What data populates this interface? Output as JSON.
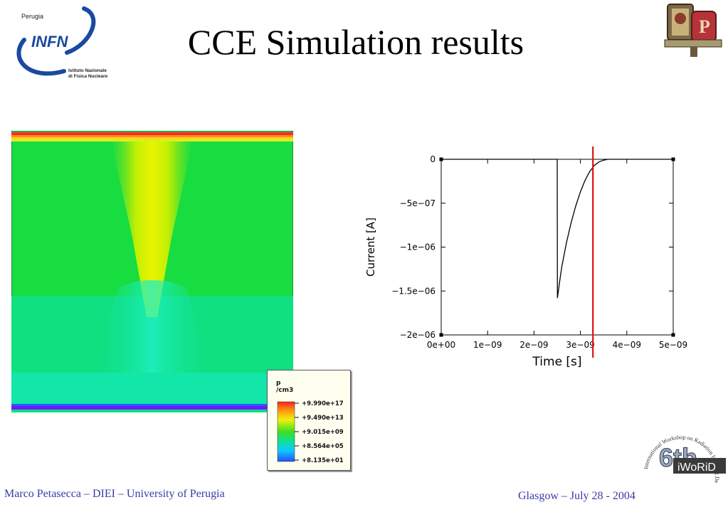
{
  "slide": {
    "title": "CCE Simulation results",
    "footer_left": "Marco Petasecca – DIEI – University of Perugia",
    "footer_right": "Glasgow – July 28 - 2004"
  },
  "logos": {
    "infn": {
      "city": "Perugia",
      "acronym": "INFN",
      "line1": "Istituto Nazionale",
      "line2": "di Fisica Nucleare"
    },
    "university": {
      "icon": "university-crest-icon"
    },
    "workshop": {
      "line": "International Workshop on Radiation Imaging Detectors",
      "edition": "6th",
      "acronym": "iWoRiD"
    }
  },
  "colors": {
    "title": "#000000",
    "footer": "#3a3aa8",
    "cursor_line": "#e01010",
    "infn_blue": "#1a4aa0"
  },
  "legend": {
    "quantity": "p",
    "unit": "/cm3",
    "ticks": [
      "+9.990e+17",
      "+9.490e+13",
      "+9.015e+09",
      "+8.564e+05",
      "+8.135e+01"
    ]
  },
  "chart_data": {
    "type": "line",
    "xlabel": "Time [s]",
    "ylabel": "Current [A]",
    "xlim": [
      0,
      5e-09
    ],
    "ylim": [
      -2e-06,
      0
    ],
    "xticks": [
      {
        "value": 0,
        "label": "0e+00"
      },
      {
        "value": 1e-09,
        "label": "1e−09"
      },
      {
        "value": 2e-09,
        "label": "2e−09"
      },
      {
        "value": 3e-09,
        "label": "3e−09"
      },
      {
        "value": 4e-09,
        "label": "4e−09"
      },
      {
        "value": 5e-09,
        "label": "5e−09"
      }
    ],
    "yticks": [
      {
        "value": 0,
        "label": "0"
      },
      {
        "value": -5e-07,
        "label": "−5e−07"
      },
      {
        "value": -1e-06,
        "label": "−1e−06"
      },
      {
        "value": -1.5e-06,
        "label": "−1.5e−06"
      },
      {
        "value": -2e-06,
        "label": "−2e−06"
      }
    ],
    "series": [
      {
        "x": [
          0,
          2.5e-09,
          2.505e-09,
          2.55e-09,
          2.6e-09,
          2.7e-09,
          2.8e-09,
          2.9e-09,
          3e-09,
          3.1e-09,
          3.2e-09,
          3.3e-09,
          3.4e-09,
          3.5e-09,
          3.6e-09,
          4e-09,
          5e-09
        ],
        "y": [
          0,
          0,
          -1.58e-06,
          -1.4e-06,
          -1.22e-06,
          -9.5e-07,
          -7.2e-07,
          -5.3e-07,
          -3.7e-07,
          -2.4e-07,
          -1.4e-07,
          -7e-08,
          -3e-08,
          -1e-08,
          0,
          0,
          0
        ]
      }
    ],
    "marker_x": 3.27e-09,
    "grid": false
  }
}
